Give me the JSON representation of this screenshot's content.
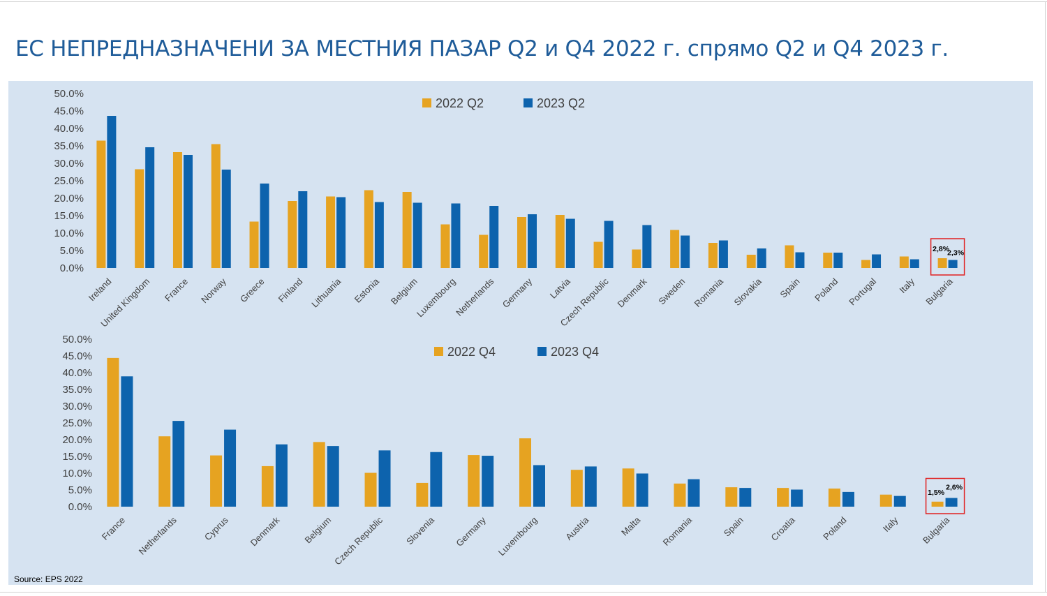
{
  "title": "ЕС НЕПРЕДНАЗНАЧЕНИ ЗА МЕСТНИЯ ПАЗАР Q2 и Q4 2022 г. спрямо Q2 и Q4 2023 г.",
  "source": "Source: EPS 2022",
  "colors": {
    "series_2022": "#e6a321",
    "series_2023": "#0d63ad",
    "panel_bg": "#d6e3f1",
    "highlight_box": "#e02020"
  },
  "chart_data": [
    {
      "type": "bar",
      "categories": [
        "Ireland",
        "United Kingdom",
        "France",
        "Norway",
        "Greece",
        "Finland",
        "Lithuania",
        "Estonia",
        "Belgium",
        "Luxembourg",
        "Netherlands",
        "Germany",
        "Latvia",
        "Czech Republic",
        "Denmark",
        "Sweden",
        "Romania",
        "Slovakia",
        "Spain",
        "Poland",
        "Portugal",
        "Italy",
        "Bulgaria"
      ],
      "series": [
        {
          "name": "2022 Q2",
          "values": [
            36.5,
            28.3,
            33.2,
            35.5,
            13.3,
            19.2,
            20.5,
            22.3,
            21.8,
            12.5,
            9.5,
            14.6,
            15.2,
            7.5,
            5.3,
            10.9,
            7.2,
            3.8,
            6.5,
            4.4,
            2.3,
            3.3,
            2.8
          ]
        },
        {
          "name": "2023 Q2",
          "values": [
            43.6,
            34.6,
            32.4,
            28.2,
            24.2,
            22.0,
            20.3,
            18.9,
            18.7,
            18.5,
            17.8,
            15.4,
            14.1,
            13.5,
            12.3,
            9.3,
            7.9,
            5.6,
            4.5,
            4.4,
            3.9,
            2.5,
            2.3
          ]
        }
      ],
      "ylim": [
        0,
        50
      ],
      "yticks": [
        "0.0%",
        "5.0%",
        "10.0%",
        "15.0%",
        "20.0%",
        "25.0%",
        "30.0%",
        "35.0%",
        "40.0%",
        "45.0%",
        "50.0%"
      ],
      "grid": true,
      "legend": "top-center",
      "annotations": [
        "2,8%",
        "2,3%"
      ],
      "highlight": "Bulgaria"
    },
    {
      "type": "bar",
      "categories": [
        "France",
        "Netherlands",
        "Cyprus",
        "Denmark",
        "Belgium",
        "Czech Republic",
        "Slovenia",
        "Germany",
        "Luxembourg",
        "Austria",
        "Malta",
        "Romania",
        "Spain",
        "Croatia",
        "Poland",
        "Italy",
        "Bulgaria"
      ],
      "series": [
        {
          "name": "2022 Q4",
          "values": [
            44.4,
            21.0,
            15.3,
            12.1,
            19.3,
            10.1,
            7.1,
            15.4,
            20.4,
            11.0,
            11.4,
            6.9,
            5.8,
            5.6,
            5.4,
            3.6,
            1.5
          ]
        },
        {
          "name": "2023 Q4",
          "values": [
            38.9,
            25.6,
            23.0,
            18.6,
            18.1,
            16.8,
            16.3,
            15.2,
            12.4,
            12.0,
            9.9,
            8.2,
            5.6,
            5.1,
            4.4,
            3.2,
            2.6
          ]
        }
      ],
      "ylim": [
        0,
        50
      ],
      "yticks": [
        "0.0%",
        "5.0%",
        "10.0%",
        "15.0%",
        "20.0%",
        "25.0%",
        "30.0%",
        "35.0%",
        "40.0%",
        "45.0%",
        "50.0%"
      ],
      "grid": true,
      "legend": "top-center",
      "annotations": [
        "1,5%",
        "2,6%"
      ],
      "highlight": "Bulgaria"
    }
  ]
}
